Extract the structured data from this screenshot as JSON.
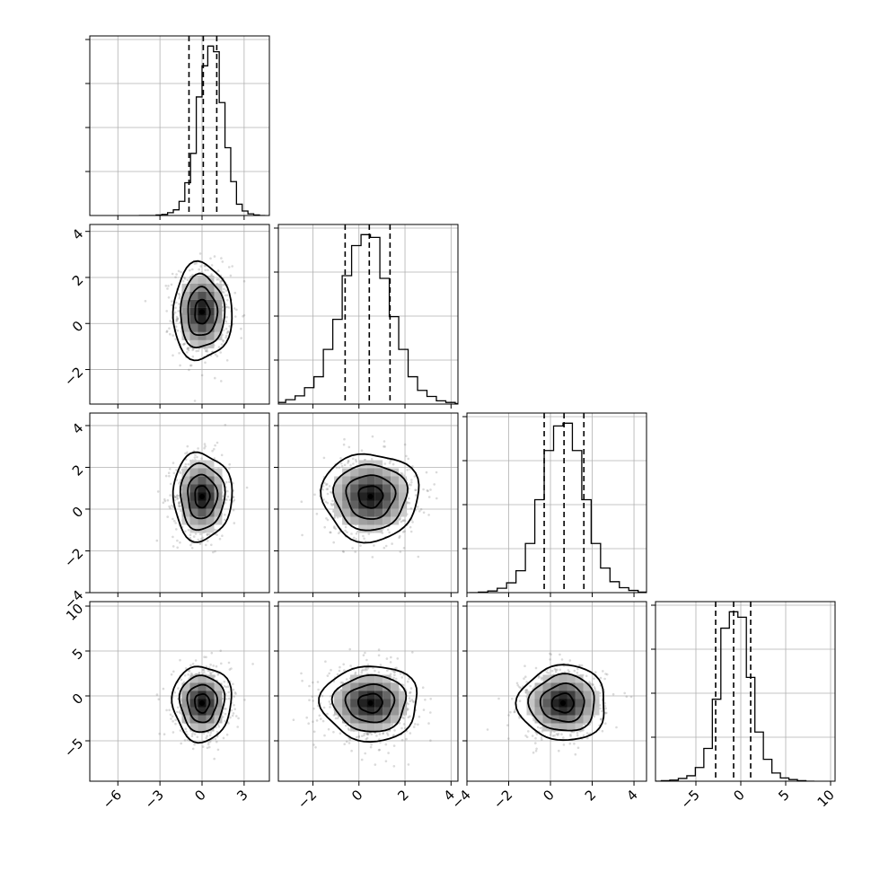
{
  "chart_data": {
    "type": "corner",
    "title": "",
    "grid": true,
    "quantiles": [
      0.16,
      0.5,
      0.84
    ],
    "parameters": [
      {
        "range": [
          -8,
          4.8
        ],
        "ticks": [
          -6,
          -3,
          0,
          3
        ],
        "tick_labels": [
          "−6",
          "−3",
          "0",
          "3"
        ],
        "mean": 0.0,
        "sd": 1.0,
        "quantile_values": [
          -0.93,
          0.09,
          1.05
        ],
        "hist_heights": [
          0,
          0,
          0,
          1,
          2,
          5,
          10,
          25,
          58,
          110,
          210,
          265,
          300,
          290,
          200,
          120,
          60,
          20,
          8,
          3,
          1,
          0
        ]
      },
      {
        "range": [
          -3.5,
          4.3
        ],
        "ticks": [
          -2,
          0,
          2,
          4
        ],
        "tick_labels": [
          "−2",
          "0",
          "2",
          "4"
        ],
        "mean": 0.5,
        "sd": 1.0,
        "quantile_values": [
          -0.6,
          0.45,
          1.35
        ],
        "hist_heights": [
          1,
          3,
          8,
          15,
          30,
          50,
          100,
          155,
          235,
          290,
          310,
          305,
          230,
          160,
          100,
          50,
          25,
          14,
          6,
          3,
          1,
          0
        ]
      },
      {
        "range": [
          -4,
          4.6
        ],
        "ticks": [
          -4,
          -2,
          0,
          2,
          4
        ],
        "tick_labels": [
          "−4",
          "−2",
          "0",
          "2",
          "4"
        ],
        "mean": 0.6,
        "sd": 1.0,
        "quantile_values": [
          -0.3,
          0.65,
          1.6
        ],
        "hist_heights": [
          0,
          1,
          3,
          8,
          18,
          40,
          90,
          170,
          260,
          305,
          310,
          260,
          170,
          90,
          45,
          20,
          9,
          4,
          1,
          0
        ]
      },
      {
        "range": [
          -9.5,
          10.5
        ],
        "ticks": [
          -5,
          0,
          5,
          10
        ],
        "tick_labels": [
          "−5",
          "0",
          "5",
          "10"
        ],
        "mean": -0.8,
        "sd": 2.0,
        "quantile_values": [
          -2.8,
          -0.8,
          1.1
        ],
        "hist_heights": [
          0,
          1,
          2,
          5,
          10,
          25,
          60,
          150,
          280,
          310,
          300,
          190,
          90,
          40,
          15,
          6,
          3,
          1,
          0
        ]
      }
    ],
    "y_tick_rows": [
      {
        "row": 1,
        "ticks": [
          -2,
          0,
          2,
          4
        ],
        "tick_labels": [
          "−2",
          "0",
          "2",
          "4"
        ]
      },
      {
        "row": 2,
        "ticks": [
          -4,
          -2,
          0,
          2,
          4
        ],
        "tick_labels": [
          "−4",
          "−2",
          "0",
          "2",
          "4"
        ]
      },
      {
        "row": 3,
        "ticks": [
          -5,
          0,
          5,
          10
        ],
        "tick_labels": [
          "−5",
          "0",
          "5",
          "10"
        ]
      }
    ],
    "contour_levels_sigma": [
      0.5,
      1.0,
      1.5,
      2.0
    ],
    "scatter_color": "#7a7a7a",
    "density_color": "#000000"
  }
}
